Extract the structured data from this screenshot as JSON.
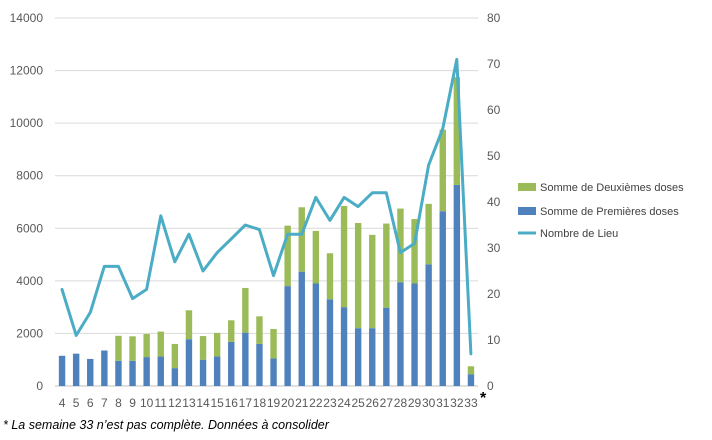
{
  "chart_data": {
    "type": "bar",
    "stacked": true,
    "categories": [
      "4",
      "5",
      "6",
      "7",
      "8",
      "9",
      "10",
      "11",
      "12",
      "13",
      "14",
      "15",
      "16",
      "17",
      "18",
      "19",
      "20",
      "21",
      "22",
      "23",
      "24",
      "25",
      "26",
      "27",
      "28",
      "29",
      "30",
      "31",
      "32",
      "33"
    ],
    "series": [
      {
        "name": "Somme de Deuxièmes doses",
        "kind": "bar",
        "axis": "left",
        "color": "#9BBB59",
        "values": [
          0,
          0,
          0,
          0,
          950,
          930,
          880,
          950,
          920,
          1100,
          900,
          900,
          820,
          1700,
          1050,
          1120,
          2300,
          2450,
          2000,
          1750,
          3850,
          4000,
          3550,
          3200,
          2800,
          2450,
          2300,
          3100,
          4100,
          300
        ]
      },
      {
        "name": "Somme de Premières doses",
        "kind": "bar",
        "axis": "left",
        "color": "#4F81BD",
        "values": [
          1150,
          1230,
          1030,
          1350,
          960,
          960,
          1100,
          1120,
          680,
          1780,
          1000,
          1120,
          1680,
          2030,
          1600,
          1050,
          3800,
          4350,
          3900,
          3300,
          3000,
          2200,
          2200,
          2980,
          3950,
          3900,
          4630,
          6650,
          7650,
          450
        ]
      },
      {
        "name": "Nombre de Lieu",
        "kind": "line",
        "axis": "right",
        "color": "#4BACC6",
        "values": [
          21,
          11,
          16,
          26,
          26,
          19,
          21,
          37,
          27,
          33,
          25,
          29,
          32,
          35,
          34,
          24,
          33,
          33,
          41,
          36,
          41,
          39,
          42,
          42,
          29,
          31,
          48,
          56,
          71,
          7
        ]
      }
    ],
    "ylim_left": [
      0,
      14000
    ],
    "yticks_left": [
      "0",
      "2000",
      "4000",
      "6000",
      "8000",
      "10000",
      "12000",
      "14000"
    ],
    "ylim_right": [
      0,
      80
    ],
    "yticks_right": [
      "0",
      "10",
      "20",
      "30",
      "40",
      "50",
      "60",
      "70",
      "80"
    ],
    "grid": true,
    "legend_position": "right",
    "annotation": "*"
  },
  "footnote": "* La semaine 33 n’est pas complète. Données à consolider"
}
